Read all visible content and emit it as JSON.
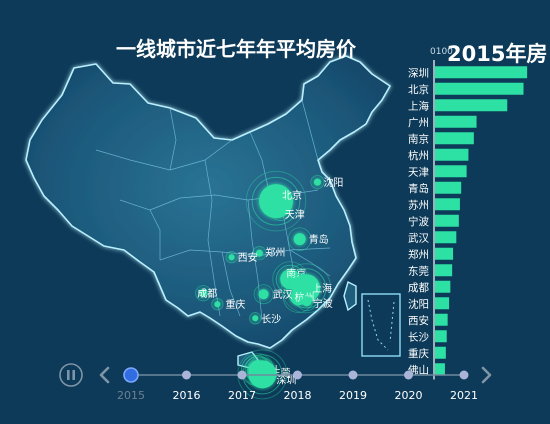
{
  "title": "一线城市近七年年平均房价",
  "year_label": "2015年房",
  "axis_top_text": "0100",
  "chart_data": {
    "type": "bar",
    "orientation": "horizontal",
    "year": 2015,
    "categories": [
      "深圳",
      "北京",
      "上海",
      "广州",
      "南京",
      "杭州",
      "天津",
      "青岛",
      "苏州",
      "宁波",
      "武汉",
      "郑州",
      "东莞",
      "成都",
      "沈阳",
      "西安",
      "长沙",
      "重庆",
      "佛山"
    ],
    "values": [
      51000,
      49000,
      40000,
      23000,
      21500,
      18500,
      17500,
      14500,
      13800,
      13200,
      11800,
      10000,
      9500,
      8500,
      7800,
      7000,
      6500,
      6000,
      5500
    ],
    "xlim": [
      0,
      55000
    ],
    "bar_color": "#2de0a3"
  },
  "map": {
    "cities": [
      {
        "name": "沈阳",
        "lon": 123.4,
        "lat": 41.8,
        "r": 3.5
      },
      {
        "name": "北京",
        "lon": 116.4,
        "lat": 39.9,
        "r": 17
      },
      {
        "name": "天津",
        "lon": 117.2,
        "lat": 39.1,
        "r": 6
      },
      {
        "name": "青岛",
        "lon": 120.4,
        "lat": 36.1,
        "r": 6
      },
      {
        "name": "郑州",
        "lon": 113.6,
        "lat": 34.7,
        "r": 3.5
      },
      {
        "name": "西安",
        "lon": 108.9,
        "lat": 34.3,
        "r": 3
      },
      {
        "name": "南京",
        "lon": 118.8,
        "lat": 32.1,
        "r": 10
      },
      {
        "name": "苏州",
        "lon": 120.6,
        "lat": 31.3,
        "r": 7
      },
      {
        "name": "上海",
        "lon": 121.5,
        "lat": 31.2,
        "r": 14
      },
      {
        "name": "杭州",
        "lon": 120.2,
        "lat": 30.3,
        "r": 8
      },
      {
        "name": "宁波",
        "lon": 121.6,
        "lat": 29.9,
        "r": 5
      },
      {
        "name": "武汉",
        "lon": 114.3,
        "lat": 30.6,
        "r": 5
      },
      {
        "name": "成都",
        "lon": 104.1,
        "lat": 30.7,
        "r": 4
      },
      {
        "name": "重庆",
        "lon": 106.5,
        "lat": 29.6,
        "r": 3
      },
      {
        "name": "长沙",
        "lon": 112.9,
        "lat": 28.2,
        "r": 3
      },
      {
        "name": "佛山",
        "lon": 113.1,
        "lat": 23.0,
        "r": 8
      },
      {
        "name": "广州",
        "lon": 113.3,
        "lat": 23.1,
        "r": 9
      },
      {
        "name": "东莞",
        "lon": 113.8,
        "lat": 23.0,
        "r": 7
      },
      {
        "name": "深圳",
        "lon": 114.1,
        "lat": 22.6,
        "r": 14
      }
    ]
  },
  "timeline": {
    "years": [
      "2015",
      "2016",
      "2017",
      "2018",
      "2019",
      "2020",
      "2021"
    ],
    "current_index": 0
  },
  "colors": {
    "background": "#0c3a58",
    "map_fill": "#1f5d7d",
    "map_border": "#a7e9ff",
    "bubble": "#2de0a3",
    "timeline_active": "#2f6de0",
    "timeline_dot": "#aab4d8"
  }
}
